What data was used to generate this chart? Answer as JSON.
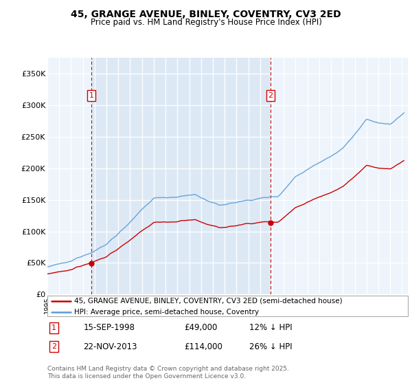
{
  "title": "45, GRANGE AVENUE, BINLEY, COVENTRY, CV3 2ED",
  "subtitle": "Price paid vs. HM Land Registry's House Price Index (HPI)",
  "property_label": "45, GRANGE AVENUE, BINLEY, COVENTRY, CV3 2ED (semi-detached house)",
  "hpi_label": "HPI: Average price, semi-detached house, Coventry",
  "sale1_date_str": "15-SEP-1998",
  "sale1_price": 49000,
  "sale1_note": "12% ↓ HPI",
  "sale2_date_str": "22-NOV-2013",
  "sale2_price": 114000,
  "sale2_note": "26% ↓ HPI",
  "footer": "Contains HM Land Registry data © Crown copyright and database right 2025.\nThis data is licensed under the Open Government Licence v3.0.",
  "ylim": [
    0,
    375000
  ],
  "yticks": [
    0,
    50000,
    100000,
    150000,
    200000,
    250000,
    300000,
    350000
  ],
  "ytick_labels": [
    "£0",
    "£50K",
    "£100K",
    "£150K",
    "£200K",
    "£250K",
    "£300K",
    "£350K"
  ],
  "red_color": "#cc0000",
  "blue_color": "#5b9bd5",
  "shade_color": "#dce9f5",
  "dashed_line_color": "#cc0000",
  "sale1_year": 1998.71,
  "sale2_year": 2013.89,
  "xmin": 1995.0,
  "xmax": 2025.5
}
